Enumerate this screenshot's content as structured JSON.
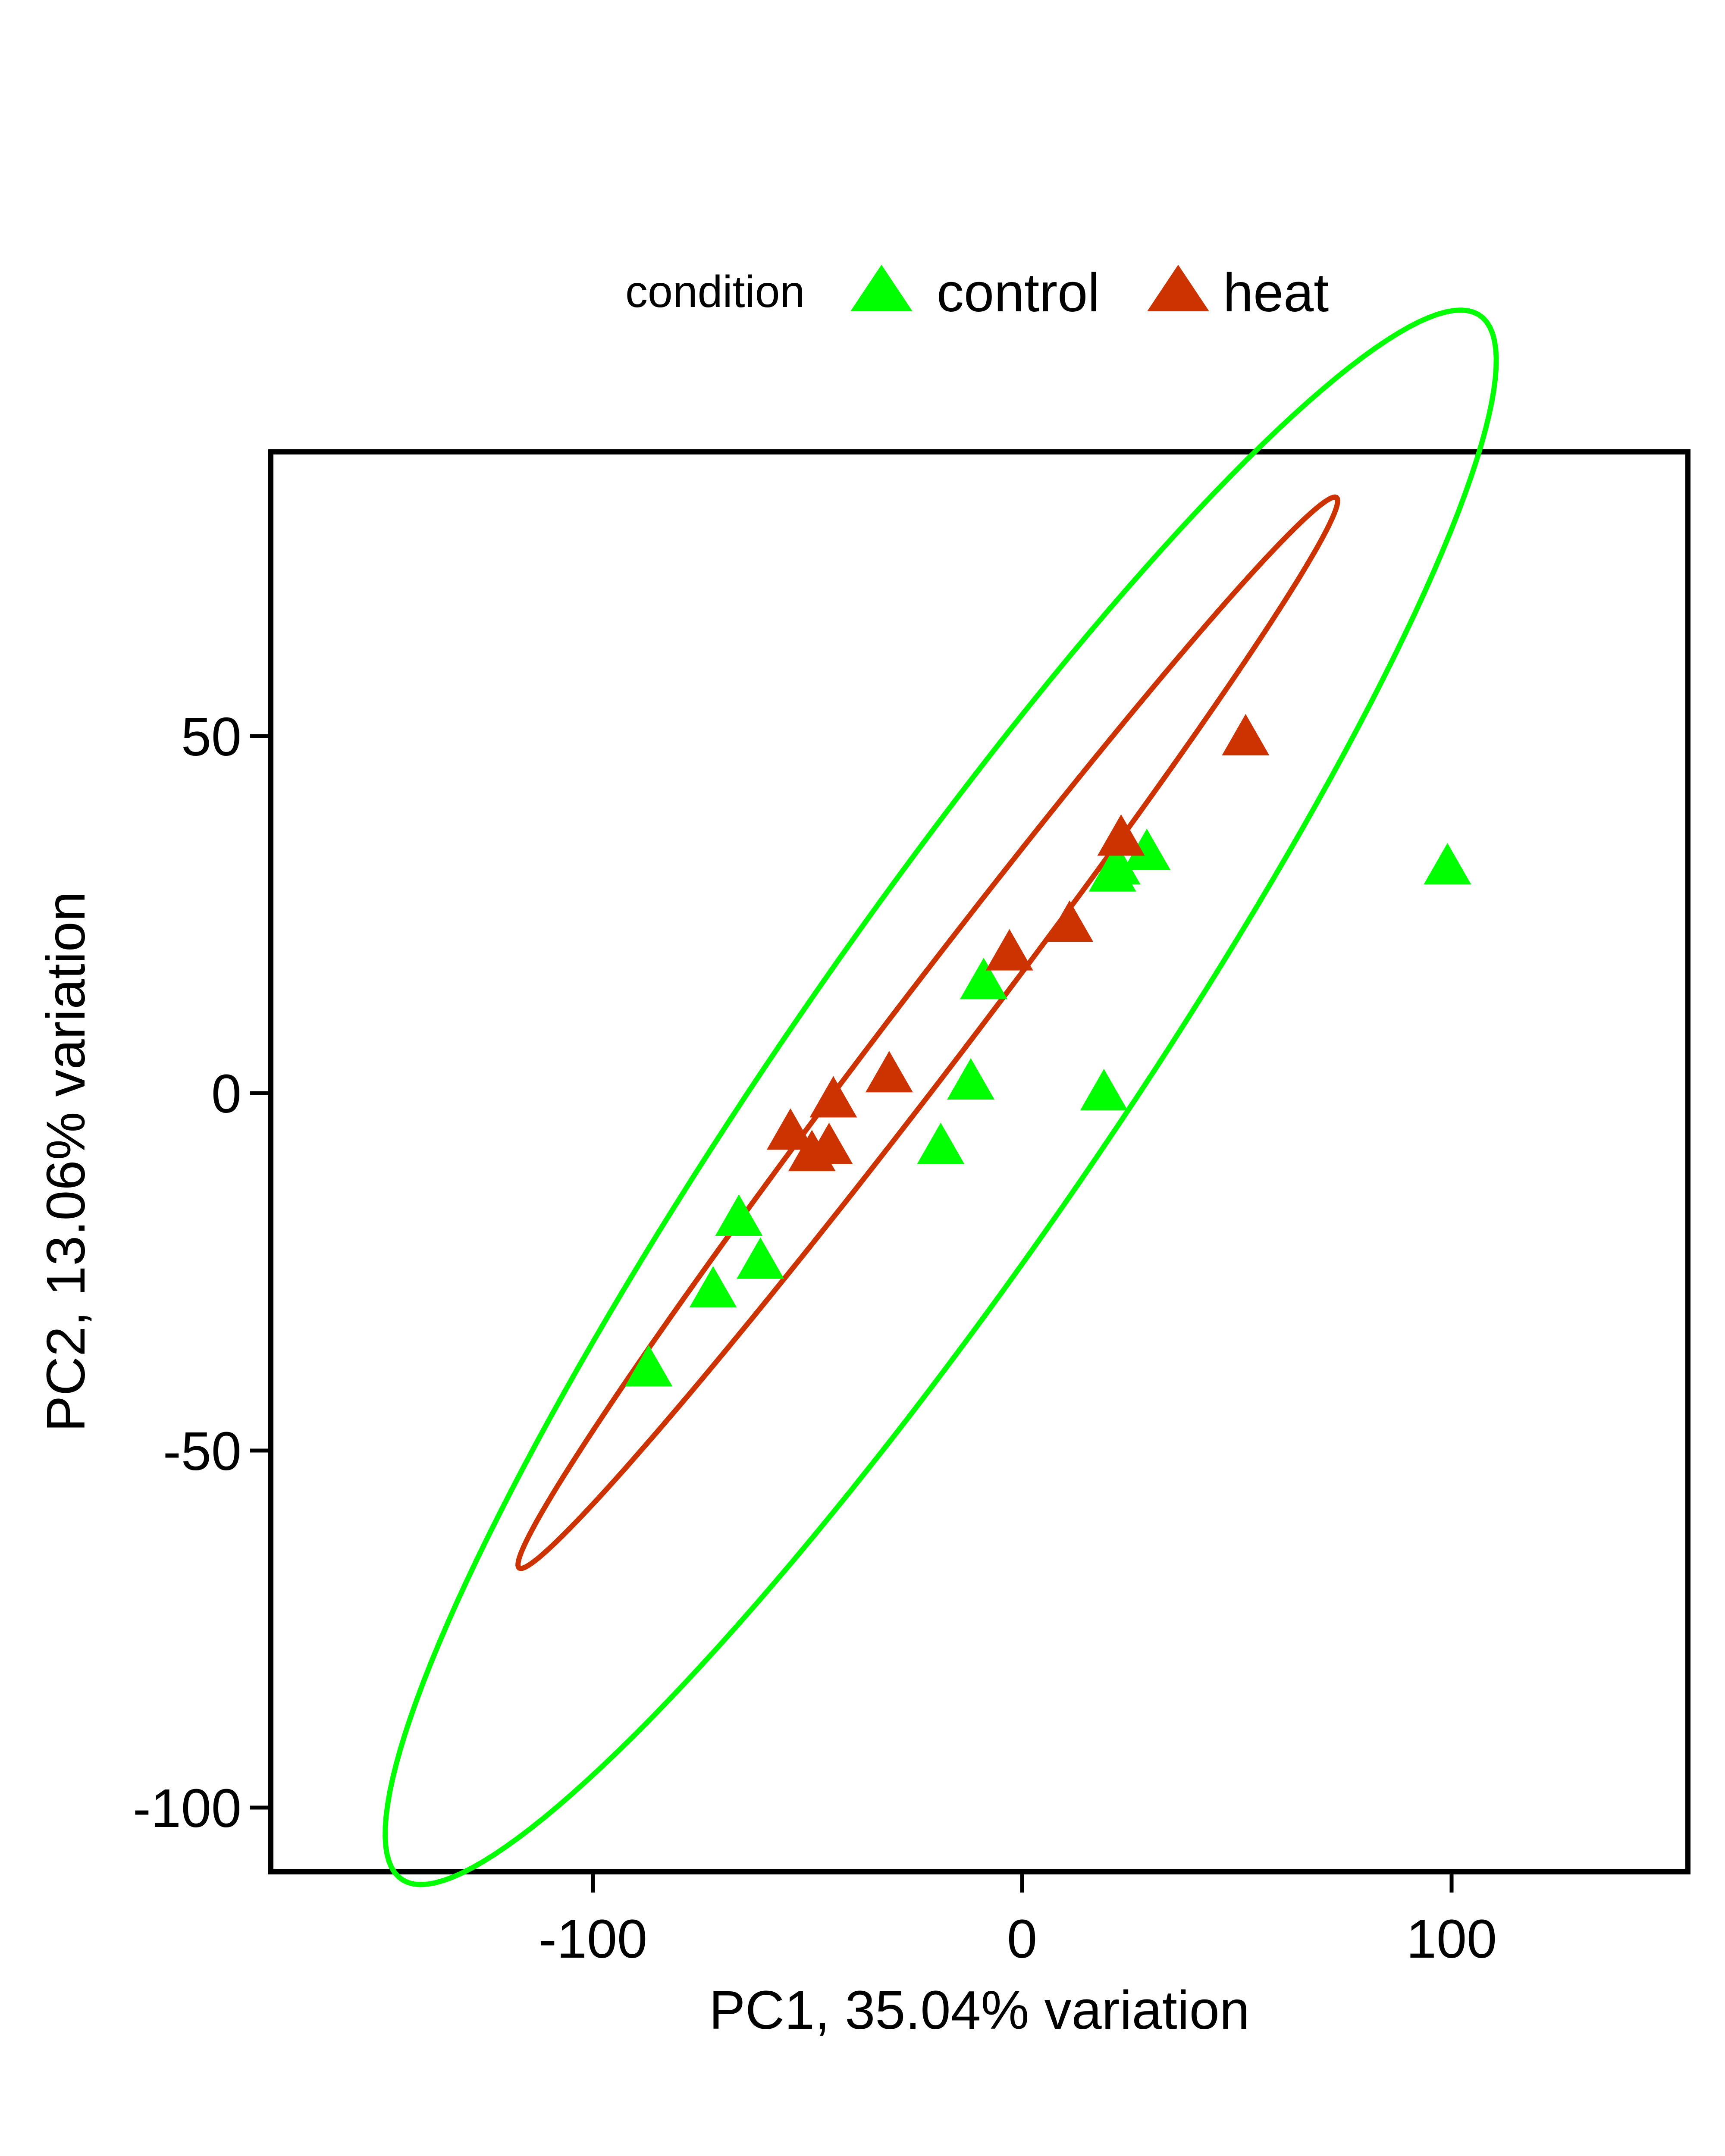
{
  "chart_data": {
    "type": "scatter",
    "title": "",
    "xlabel": "PC1, 35.04% variation",
    "ylabel": "PC2, 13.06% variation",
    "xlim": [
      -175,
      155
    ],
    "ylim": [
      -109,
      89
    ],
    "xticks": [
      -100,
      0,
      100
    ],
    "xtick_labels": [
      "-100",
      "0",
      "100"
    ],
    "yticks": [
      -100,
      -50,
      0,
      50
    ],
    "ytick_labels": [
      "-100",
      "-50",
      "0",
      "50"
    ],
    "grid": false,
    "legend": {
      "position": "top",
      "title": "condition",
      "entries": [
        "control",
        "heat"
      ]
    },
    "marker": "triangle",
    "series": [
      {
        "name": "control",
        "color": "#00FF00",
        "points": [
          {
            "x": -87,
            "y": -39
          },
          {
            "x": -72,
            "y": -28
          },
          {
            "x": -66,
            "y": -18
          },
          {
            "x": -61,
            "y": -24
          },
          {
            "x": -19,
            "y": -8
          },
          {
            "x": -12,
            "y": 1
          },
          {
            "x": -9,
            "y": 15
          },
          {
            "x": 19,
            "y": -0.5
          },
          {
            "x": 21,
            "y": 30
          },
          {
            "x": 22,
            "y": 31
          },
          {
            "x": 29,
            "y": 33
          },
          {
            "x": 99,
            "y": 31
          }
        ],
        "ellipse": {
          "cx": -19,
          "cy": -1,
          "a": 167,
          "b": 30,
          "angle_deg": 40
        }
      },
      {
        "name": "heat",
        "color": "#CC3300",
        "points": [
          {
            "x": -54,
            "y": -6
          },
          {
            "x": -49,
            "y": -9
          },
          {
            "x": -45,
            "y": -8
          },
          {
            "x": -44,
            "y": -1.5
          },
          {
            "x": -31,
            "y": 2
          },
          {
            "x": -3,
            "y": 19
          },
          {
            "x": 11,
            "y": 23
          },
          {
            "x": 23,
            "y": 35
          },
          {
            "x": 52,
            "y": 49
          }
        ],
        "ellipse": {
          "cx": -22,
          "cy": 8,
          "a": 121,
          "b": 7,
          "angle_deg": 38
        }
      }
    ]
  }
}
